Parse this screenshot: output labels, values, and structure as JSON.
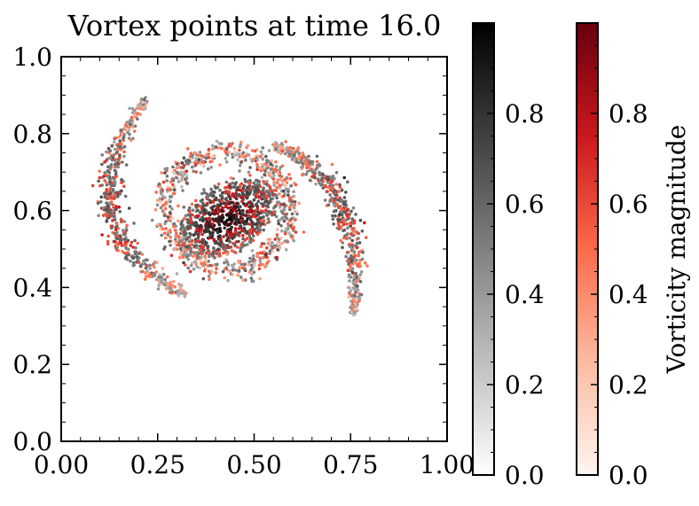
{
  "chart_data": {
    "type": "scatter",
    "title": "Vortex points at time 16.0",
    "xlabel": "",
    "ylabel": "",
    "xlim": [
      0.0,
      1.0
    ],
    "ylim": [
      0.0,
      1.0
    ],
    "x_ticks": [
      "0.00",
      "0.25",
      "0.50",
      "0.75",
      "1.00"
    ],
    "y_ticks": [
      "0.0",
      "0.2",
      "0.4",
      "0.6",
      "0.8",
      "1.0"
    ],
    "grid": false,
    "description_of_points": "Dense spiral cluster centred near (0.43, 0.58) with two spiral arms; left arm from (0.22, 0.89) down around (0.13, 0.60) to (0.32, 0.38); right arm from (0.55, 0.77) curving out to (0.76, 0.33). Points coloured by two colormaps (gray and red) encoding vorticity magnitude.",
    "colorbars": [
      {
        "name": "gray",
        "label": "",
        "range": [
          0.0,
          1.0
        ],
        "ticks": [
          "0.0",
          "0.2",
          "0.4",
          "0.6",
          "0.8"
        ],
        "colors": [
          "#ffffff",
          "#000000"
        ]
      },
      {
        "name": "red",
        "label": "Vorticity magnitude",
        "range": [
          0.0,
          1.0
        ],
        "ticks": [
          "0.0",
          "0.2",
          "0.4",
          "0.6",
          "0.8"
        ],
        "colors": [
          "#fff5f0",
          "#fcbba1",
          "#fb6a4a",
          "#cb181d",
          "#67000d"
        ]
      }
    ],
    "spiral": {
      "center": [
        0.43,
        0.58
      ],
      "core_radius": 0.14,
      "arms": [
        {
          "start": [
            0.22,
            0.89
          ],
          "mid": [
            0.13,
            0.6
          ],
          "end": [
            0.32,
            0.38
          ]
        },
        {
          "start": [
            0.55,
            0.77
          ],
          "mid": [
            0.72,
            0.62
          ],
          "end": [
            0.76,
            0.33
          ]
        }
      ]
    }
  }
}
